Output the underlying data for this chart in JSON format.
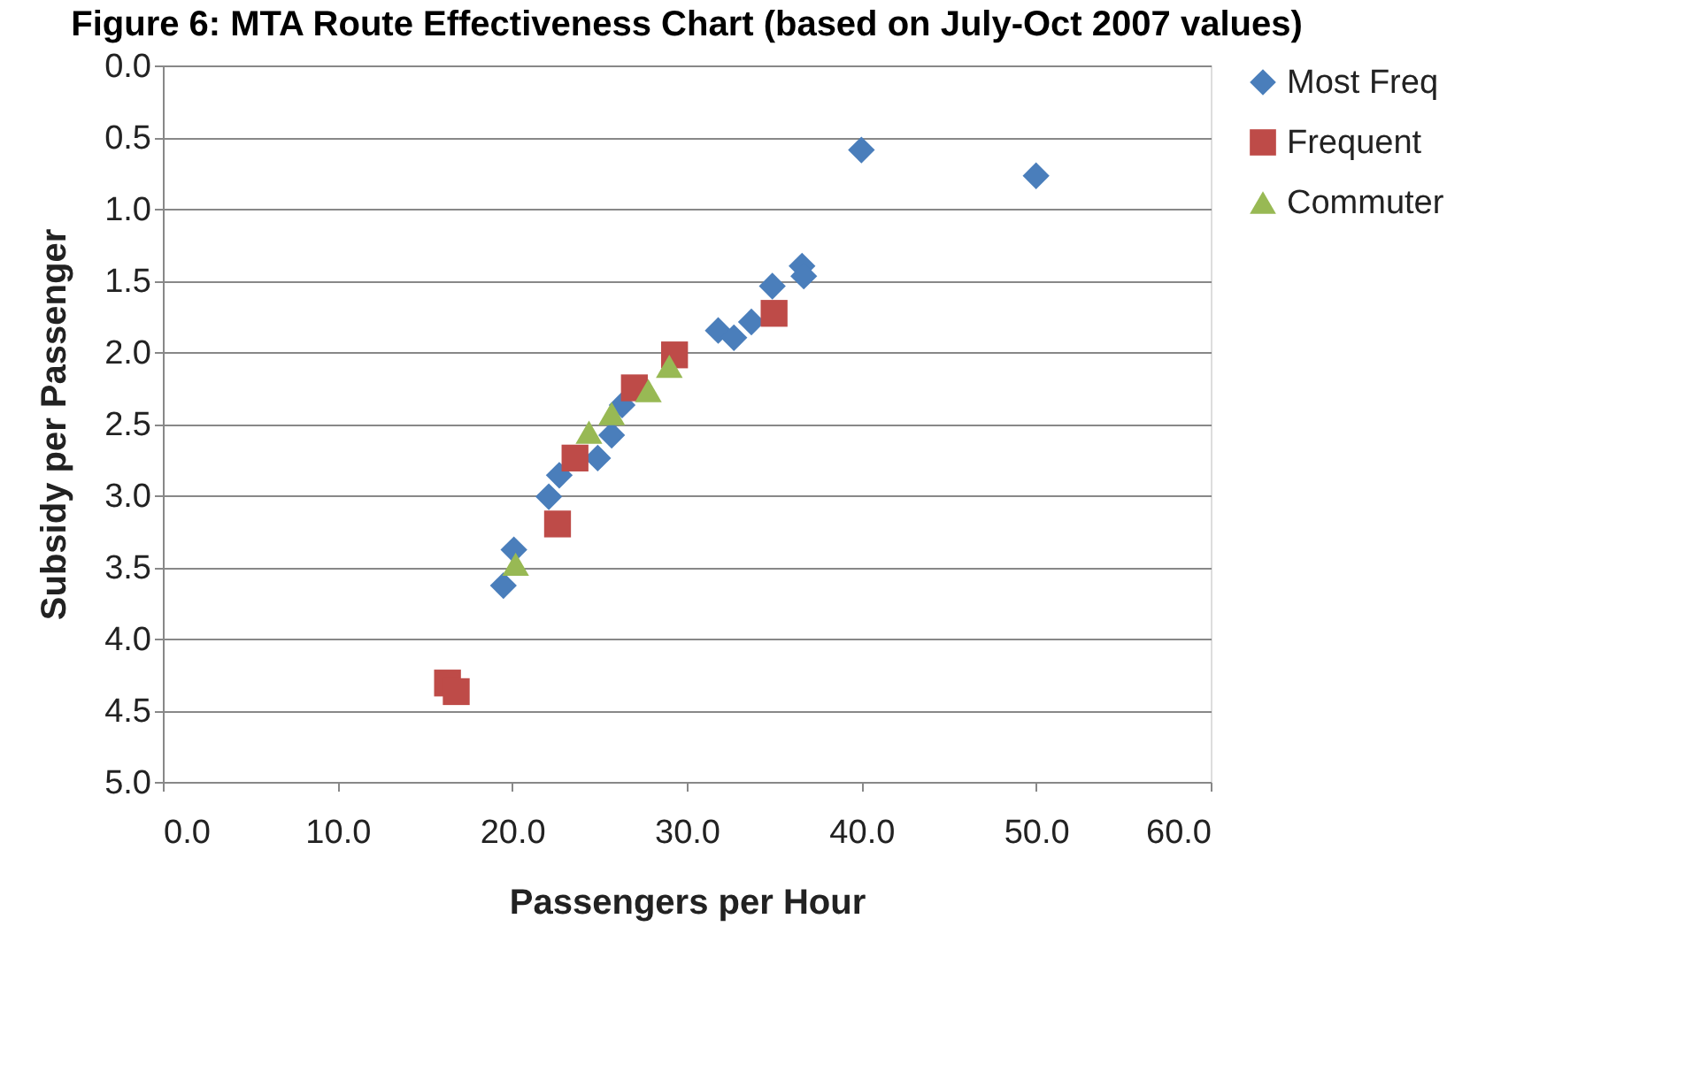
{
  "chart_data": {
    "type": "scatter",
    "title": "Figure 6: MTA Route Effectiveness Chart (based on July-Oct 2007 values)",
    "xlabel": "Passengers per Hour",
    "ylabel": "Subsidy per Passenger",
    "xlim": [
      0,
      60
    ],
    "xticks": [
      {
        "value": 0,
        "label": "0.0"
      },
      {
        "value": 10,
        "label": "10.0"
      },
      {
        "value": 20,
        "label": "20.0"
      },
      {
        "value": 30,
        "label": "30.0"
      },
      {
        "value": 40,
        "label": "40.0"
      },
      {
        "value": 50,
        "label": "50.0"
      },
      {
        "value": 60,
        "label": "60.0"
      }
    ],
    "ylim": [
      5,
      0
    ],
    "yticks": [
      {
        "value": 0,
        "label": "0.0"
      },
      {
        "value": 0.5,
        "label": "0.5"
      },
      {
        "value": 1,
        "label": "1.0"
      },
      {
        "value": 1.5,
        "label": "1.5"
      },
      {
        "value": 2,
        "label": "2.0"
      },
      {
        "value": 2.5,
        "label": "2.5"
      },
      {
        "value": 3,
        "label": "3.0"
      },
      {
        "value": 3.5,
        "label": "3.5"
      },
      {
        "value": 4,
        "label": "4.0"
      },
      {
        "value": 4.5,
        "label": "4.5"
      },
      {
        "value": 5,
        "label": "5.0"
      }
    ],
    "grid": "y",
    "legend": "right",
    "series": [
      {
        "name": "Most Freq",
        "color": "#4a7ebb",
        "marker": "diamond",
        "x": [
          40.0,
          50.0,
          36.6,
          36.7,
          34.9,
          33.7,
          31.8,
          32.7,
          26.3,
          25.7,
          24.9,
          22.7,
          22.1,
          20.1,
          19.5
        ],
        "values": [
          0.59,
          0.77,
          1.4,
          1.47,
          1.54,
          1.79,
          1.85,
          1.9,
          2.37,
          2.58,
          2.74,
          2.86,
          3.01,
          3.38,
          3.63
        ]
      },
      {
        "name": "Frequent",
        "color": "#be4b48",
        "marker": "square",
        "x": [
          35.0,
          29.3,
          27.0,
          23.6,
          22.6,
          16.3,
          16.8
        ],
        "values": [
          1.73,
          2.02,
          2.25,
          2.74,
          3.2,
          4.31,
          4.37
        ]
      },
      {
        "name": "Commuter",
        "color": "#98b954",
        "marker": "triangle",
        "x": [
          29.0,
          27.8,
          25.7,
          24.4,
          20.2
        ],
        "values": [
          2.1,
          2.27,
          2.43,
          2.56,
          3.48
        ]
      }
    ]
  }
}
